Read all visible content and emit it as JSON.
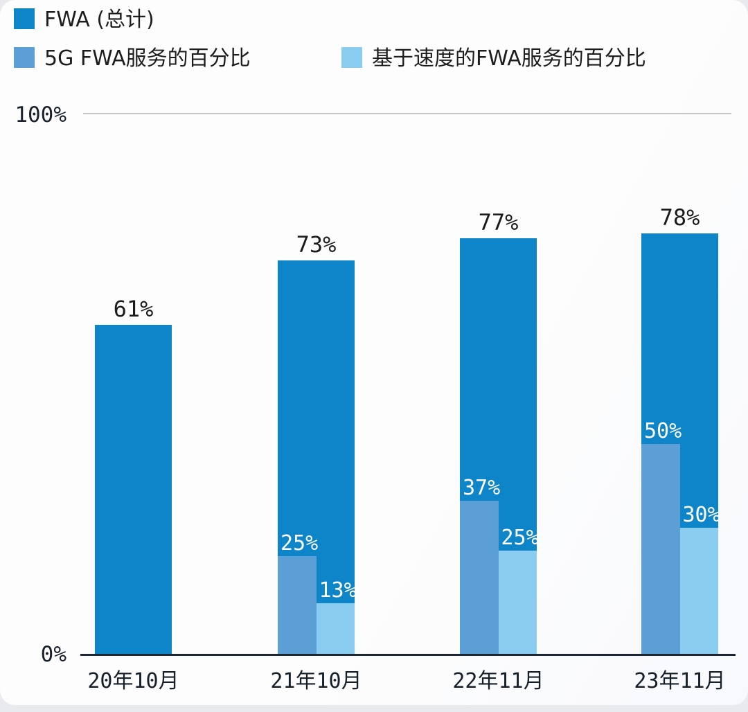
{
  "chart_data": {
    "type": "bar",
    "title": "",
    "categories": [
      "20年10月",
      "21年10月",
      "22年11月",
      "23年11月"
    ],
    "series": [
      {
        "name": "FWA (总计)",
        "color": "#0e85c9",
        "unit": "%",
        "values": [
          61,
          73,
          77,
          78
        ]
      },
      {
        "name": "5G FWA服务的百分比",
        "color": "#5c9fd6",
        "unit": "%",
        "values": [
          null,
          25,
          37,
          50
        ],
        "rendered_relative_to": "FWA (总计)"
      },
      {
        "name": "基于速度的FWA服务的百分比",
        "color": "#8bcdf0",
        "unit": "%",
        "values": [
          null,
          13,
          25,
          30
        ],
        "rendered_relative_to": "FWA (总计)"
      }
    ],
    "axis": {
      "y_top_label": "100%",
      "y_bottom_label": "0%",
      "ylim": [
        0,
        100
      ],
      "yticks": [
        "0%",
        "100%"
      ]
    },
    "legend_position": "top-left",
    "grid": "single horizontal gridline at 100% only",
    "sub_bars_scaled_by_parent": true
  },
  "colors": {
    "fwa_total": "#0e85c9",
    "fwa_5g_share": "#5c9fd6",
    "fwa_speed_share": "#8bcdf0",
    "axis_line": "#1d2733",
    "gridline": "#c7c7c9",
    "label_dark": "#1b1b1b",
    "label_light": "#ffffff",
    "card_background": "#fdfdfd",
    "page_background": "#e9eaee"
  }
}
